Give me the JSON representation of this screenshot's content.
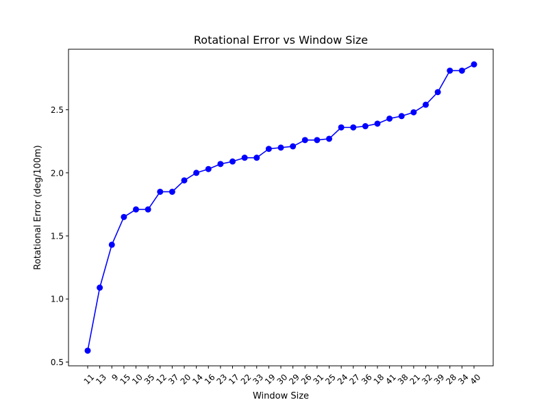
{
  "chart_data": {
    "type": "line",
    "title": "Rotational Error vs Window Size",
    "xlabel": "Window Size",
    "ylabel": "Rotational Error (deg/100m)",
    "categories": [
      "11",
      "13",
      "9",
      "15",
      "10",
      "35",
      "12",
      "37",
      "20",
      "14",
      "16",
      "23",
      "17",
      "22",
      "33",
      "19",
      "30",
      "29",
      "26",
      "31",
      "25",
      "24",
      "27",
      "36",
      "18",
      "41",
      "38",
      "21",
      "32",
      "39",
      "28",
      "34",
      "40"
    ],
    "series": [
      {
        "values": [
          0.59,
          1.09,
          1.43,
          1.65,
          1.71,
          1.71,
          1.85,
          1.85,
          1.94,
          2.0,
          2.03,
          2.07,
          2.09,
          2.12,
          2.12,
          2.19,
          2.2,
          2.21,
          2.26,
          2.26,
          2.27,
          2.36,
          2.36,
          2.37,
          2.39,
          2.43,
          2.45,
          2.48,
          2.54,
          2.64,
          2.81,
          2.81,
          2.86
        ],
        "color": "#0000ff",
        "marker": "circle"
      }
    ],
    "yticks": [
      0.5,
      1.0,
      1.5,
      2.0,
      2.5
    ],
    "ytick_labels": [
      "0.5",
      "1.0",
      "1.5",
      "2.0",
      "2.5"
    ],
    "ylim": [
      0.47,
      2.98
    ],
    "grid": false,
    "xtick_rotation": -45
  }
}
